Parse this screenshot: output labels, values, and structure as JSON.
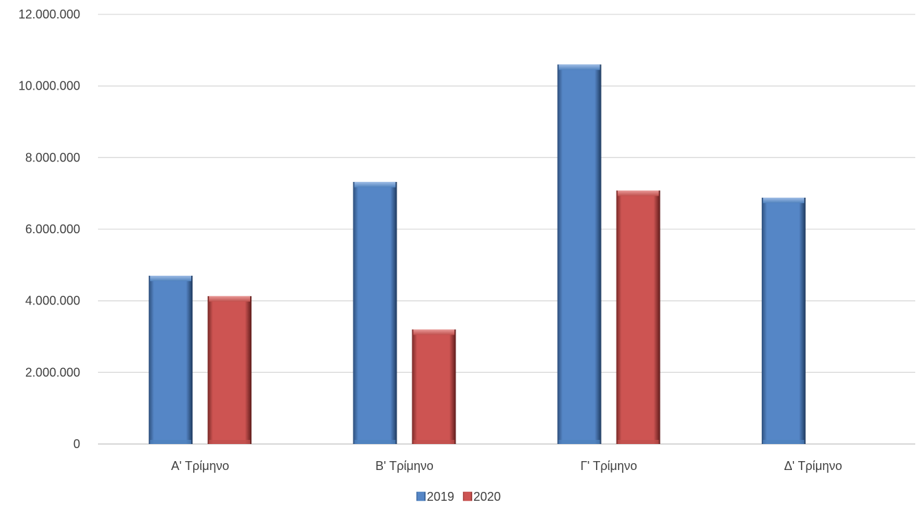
{
  "chart_data": {
    "type": "bar",
    "categories": [
      "Α' Τρίμηνο",
      "Β' Τρίμηνο",
      "Γ' Τρίμηνο",
      "Δ' Τρίμηνο"
    ],
    "series": [
      {
        "name": "2019",
        "values": [
          4700000,
          7320000,
          10600000,
          6880000
        ],
        "color": "#4f81bd"
      },
      {
        "name": "2020",
        "values": [
          4130000,
          3200000,
          7080000,
          null
        ],
        "color": "#c0504d"
      }
    ],
    "y_ticks": [
      "0",
      "2.000.000",
      "4.000.000",
      "6.000.000",
      "8.000.000",
      "10.000.000",
      "12.000.000"
    ],
    "ylim": [
      0,
      12000000
    ],
    "grid": true,
    "legend_position": "bottom",
    "title": "",
    "xlabel": "",
    "ylabel": ""
  }
}
